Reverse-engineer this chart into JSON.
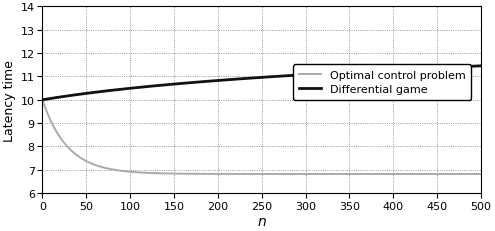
{
  "title": "",
  "xlabel": "n",
  "ylabel": "Latency time",
  "xlim": [
    0,
    500
  ],
  "ylim": [
    6,
    14
  ],
  "xticks": [
    0,
    50,
    100,
    150,
    200,
    250,
    300,
    350,
    400,
    450,
    500
  ],
  "yticks": [
    6,
    7,
    8,
    9,
    10,
    11,
    12,
    13,
    14
  ],
  "legend_labels": [
    "Optimal control problem",
    "Differential game"
  ],
  "gray_color": "#aaaaaa",
  "black_color": "#111111",
  "background_color": "#ffffff",
  "ocp_start": 10.0,
  "ocp_asymptote": 6.82,
  "ocp_decay": 0.035,
  "dg_a": 10.0,
  "dg_b": 1.05,
  "dg_c": 0.006
}
